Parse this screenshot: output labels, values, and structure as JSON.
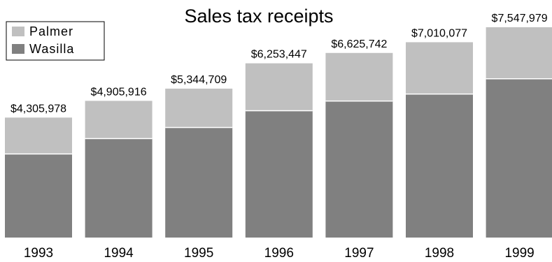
{
  "chart_data": {
    "type": "bar",
    "stacked": true,
    "title": "Sales tax receipts",
    "xlabel": "",
    "ylabel": "",
    "categories": [
      "1993",
      "1994",
      "1995",
      "1996",
      "1997",
      "1998",
      "1999"
    ],
    "series": [
      {
        "name": "Wasilla",
        "color": "#808080",
        "values": [
          3000000,
          3550000,
          3950000,
          4550000,
          4900000,
          5150000,
          5700000
        ]
      },
      {
        "name": "Palmer",
        "color": "#c0c0c0",
        "values": [
          1305978,
          1355916,
          1394709,
          1703447,
          1725742,
          1860077,
          1847979
        ]
      }
    ],
    "totals": [
      4305978,
      4905916,
      5344709,
      6253447,
      6625742,
      7010077,
      7547979
    ],
    "total_labels": [
      "$4,305,978",
      "$4,905,916",
      "$5,344,709",
      "$6,253,447",
      "$6,625,742",
      "$7,010,077",
      "$7,547,979"
    ],
    "ylim": [
      0,
      7547979
    ],
    "legend": {
      "position": "top-left",
      "order": [
        "Palmer",
        "Wasilla"
      ]
    },
    "grid": false
  }
}
